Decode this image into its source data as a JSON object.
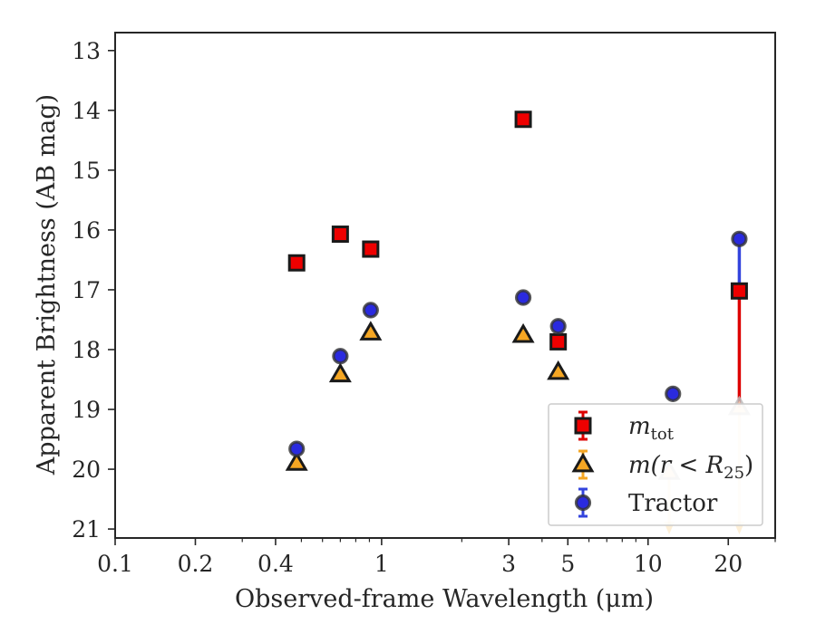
{
  "chart_data": {
    "type": "scatter",
    "title": "",
    "xlabel": "Observed-frame Wavelength (μm)",
    "ylabel": "Apparent Brightness (AB mag)",
    "xscale": "log",
    "xlim": [
      0.1,
      30
    ],
    "ylim": [
      21.15,
      12.7
    ],
    "y_inverted": true,
    "xticks": [
      {
        "value": 0.1,
        "label": "0.1"
      },
      {
        "value": 0.2,
        "label": "0.2"
      },
      {
        "value": 0.4,
        "label": "0.4"
      },
      {
        "value": 1,
        "label": "1"
      },
      {
        "value": 3,
        "label": "3"
      },
      {
        "value": 5,
        "label": "5"
      },
      {
        "value": 10,
        "label": "10"
      },
      {
        "value": 20,
        "label": "20"
      }
    ],
    "yticks": [
      {
        "value": 13,
        "label": "13"
      },
      {
        "value": 14,
        "label": "14"
      },
      {
        "value": 15,
        "label": "15"
      },
      {
        "value": 16,
        "label": "16"
      },
      {
        "value": 17,
        "label": "17"
      },
      {
        "value": 18,
        "label": "18"
      },
      {
        "value": 19,
        "label": "19"
      },
      {
        "value": 20,
        "label": "20"
      },
      {
        "value": 21,
        "label": "21"
      }
    ],
    "grid": false,
    "legend_position": "lower-right",
    "series": [
      {
        "name": "m_tot",
        "legend_label": {
          "main": "m",
          "sub": "tot"
        },
        "marker": "square",
        "color": "#ee0000",
        "edgecolor": "#1a1a1a",
        "errcolor": "#dd0000",
        "points": [
          {
            "x": 0.48,
            "y": 16.55
          },
          {
            "x": 0.7,
            "y": 16.07
          },
          {
            "x": 0.91,
            "y": 16.32
          },
          {
            "x": 3.4,
            "y": 14.15
          },
          {
            "x": 4.6,
            "y": 17.87
          },
          {
            "x": 22,
            "y": 17.02,
            "lower_err_to": 18.97
          }
        ]
      },
      {
        "name": "m(r < R25)",
        "legend_label": {
          "pre": "m(r < R",
          "sub": "25",
          "post": ")"
        },
        "marker": "triangle",
        "color": "#f5a623",
        "edgecolor": "#1a1a1a",
        "errcolor": "#f5a623",
        "points": [
          {
            "x": 0.48,
            "y": 19.9
          },
          {
            "x": 0.7,
            "y": 18.42
          },
          {
            "x": 0.91,
            "y": 17.72
          },
          {
            "x": 3.4,
            "y": 17.76
          },
          {
            "x": 4.6,
            "y": 18.38
          },
          {
            "x": 12,
            "y": 20.05,
            "upper_limit": true
          },
          {
            "x": 22,
            "y": 18.97,
            "upper_limit": true
          }
        ]
      },
      {
        "name": "Tractor",
        "legend_label": {
          "main": "Tractor"
        },
        "marker": "circle",
        "color": "#2a2adf",
        "edgecolor": "#333333",
        "errcolor": "#3344dd",
        "points": [
          {
            "x": 0.48,
            "y": 19.66
          },
          {
            "x": 0.7,
            "y": 18.11
          },
          {
            "x": 0.91,
            "y": 17.34
          },
          {
            "x": 3.4,
            "y": 17.13
          },
          {
            "x": 4.6,
            "y": 17.61
          },
          {
            "x": 12.4,
            "y": 18.74
          },
          {
            "x": 22,
            "y": 16.15,
            "lower_err_to": 17.02
          }
        ]
      }
    ]
  }
}
